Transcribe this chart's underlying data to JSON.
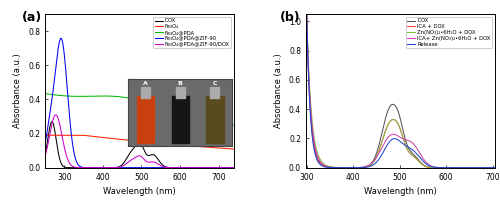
{
  "panel_a": {
    "title": "(a)",
    "xlabel": "Wavelength (nm)",
    "ylabel": "Absorbance (a.u.)",
    "xlim": [
      250,
      740
    ],
    "ylim": [
      0,
      0.9
    ],
    "yticks": [
      0.0,
      0.2,
      0.4,
      0.6,
      0.8
    ],
    "xticks": [
      300,
      400,
      500,
      600,
      700
    ],
    "series": [
      {
        "label": "DOX",
        "color": "#000000"
      },
      {
        "label": "Fe₃O₄",
        "color": "#ff2200"
      },
      {
        "label": "Fe₃O₄@PDA",
        "color": "#00bb00"
      },
      {
        "label": "Fe₃O₄@PDA@ZIF-90",
        "color": "#0000ee"
      },
      {
        "label": "Fe₃O₄@PDA@ZIF-90/DOX",
        "color": "#cc00cc"
      }
    ],
    "inset": {
      "vial_bg": "#7a7a7a",
      "vials": [
        {
          "label": "A",
          "color": "#c84010",
          "liquid": "#d04010"
        },
        {
          "label": "B",
          "color": "#151515",
          "liquid": "#0a0a0a"
        },
        {
          "label": "C",
          "color": "#5a4a20",
          "liquid": "#6a5028"
        }
      ]
    }
  },
  "panel_b": {
    "title": "(b)",
    "xlabel": "Wavelength (nm)",
    "ylabel": "Absorbance (a.u.)",
    "xlim": [
      298,
      705
    ],
    "ylim": [
      0,
      1.05
    ],
    "yticks": [
      0.0,
      0.2,
      0.4,
      0.6,
      0.8,
      1.0
    ],
    "xticks": [
      300,
      400,
      500,
      600,
      700
    ],
    "series": [
      {
        "label": "DOX",
        "color": "#555555"
      },
      {
        "label": "ICA + DOX",
        "color": "#ff4444"
      },
      {
        "label": "Zn(NO₃)₂•6H₂O + DOX",
        "color": "#88bb44"
      },
      {
        "label": "ICA+ Zn(NO₃)₂•6H₂O + DOX",
        "color": "#cc44aa"
      },
      {
        "label": "Release",
        "color": "#2244cc"
      }
    ]
  }
}
